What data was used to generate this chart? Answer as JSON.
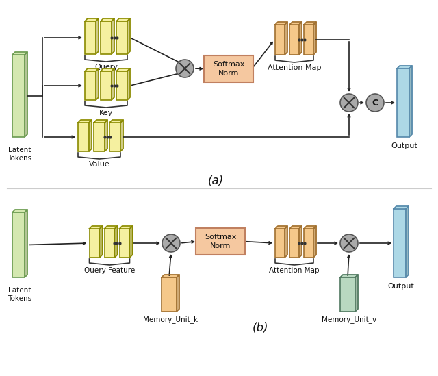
{
  "fig_width": 6.4,
  "fig_height": 5.49,
  "bg_color": "#ffffff",
  "yellow_face": "#f5f0a0",
  "yellow_edge": "#8a8a00",
  "yellow_light_face": "#f0ebb0",
  "blue_face": "#add8e6",
  "blue_edge": "#5588aa",
  "green_face": "#d4e8b0",
  "green_edge": "#6a9a50",
  "orange_face": "#f5c88a",
  "orange_edge": "#a07030",
  "teal_face": "#b8d8c0",
  "teal_edge": "#507860",
  "softmax_box_face": "#f5c8a0",
  "softmax_box_edge": "#c08060",
  "circle_face": "#aaaaaa",
  "circle_edge": "#555555",
  "arrow_color": "#222222",
  "text_color": "#111111",
  "panel_a_label": "(a)",
  "panel_b_label": "(b)",
  "latent_label_a": "Latent\nTokens",
  "latent_label_b": "Latent\nTokens",
  "query_label": "Query",
  "key_label": "Key",
  "value_label": "Value",
  "softmax_label": "Softmax\nNorm",
  "attn_map_label_a": "Attention Map",
  "attn_map_label_b": "Attention Map",
  "output_label_a": "Output",
  "output_label_b": "Output",
  "query_feat_label": "Query Feature",
  "mem_k_label": "Memory_Unit_k",
  "mem_v_label": "Memory_Unit_v",
  "c_label": "C"
}
